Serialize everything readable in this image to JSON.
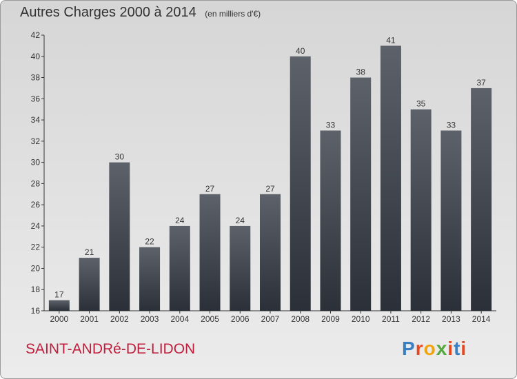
{
  "header": {
    "title": "Autres Charges 2000 à 2014",
    "subtitle": "(en milliers d'€)"
  },
  "footer": {
    "commune": "SAINT-ANDRé-DE-LIDON",
    "brand": "Proxiti",
    "brand_letter_colors": [
      "#3a7fc4",
      "#e8471e",
      "#f0a30a",
      "#54a83c",
      "#e8471e",
      "#3a7fc4",
      "#e8471e"
    ]
  },
  "colors": {
    "bar_top": "#5d626a",
    "bar_bottom": "#2b3038",
    "title_text": "#333333",
    "commune_text": "#c01e3c"
  },
  "chart_data": {
    "type": "bar",
    "title": "Autres Charges 2000 à 2014",
    "subtitle": "(en milliers d'€)",
    "categories": [
      "2000",
      "2001",
      "2002",
      "2003",
      "2004",
      "2005",
      "2006",
      "2007",
      "2008",
      "2009",
      "2010",
      "2011",
      "2012",
      "2013",
      "2014"
    ],
    "values": [
      17,
      21,
      30,
      22,
      24,
      27,
      24,
      27,
      40,
      33,
      38,
      41,
      35,
      33,
      37
    ],
    "ylim": [
      16,
      42
    ],
    "yticks": [
      16,
      18,
      20,
      22,
      24,
      26,
      28,
      30,
      32,
      34,
      36,
      38,
      40,
      42
    ],
    "xlabel": "",
    "ylabel": "",
    "grid": false,
    "data_labels": true
  }
}
